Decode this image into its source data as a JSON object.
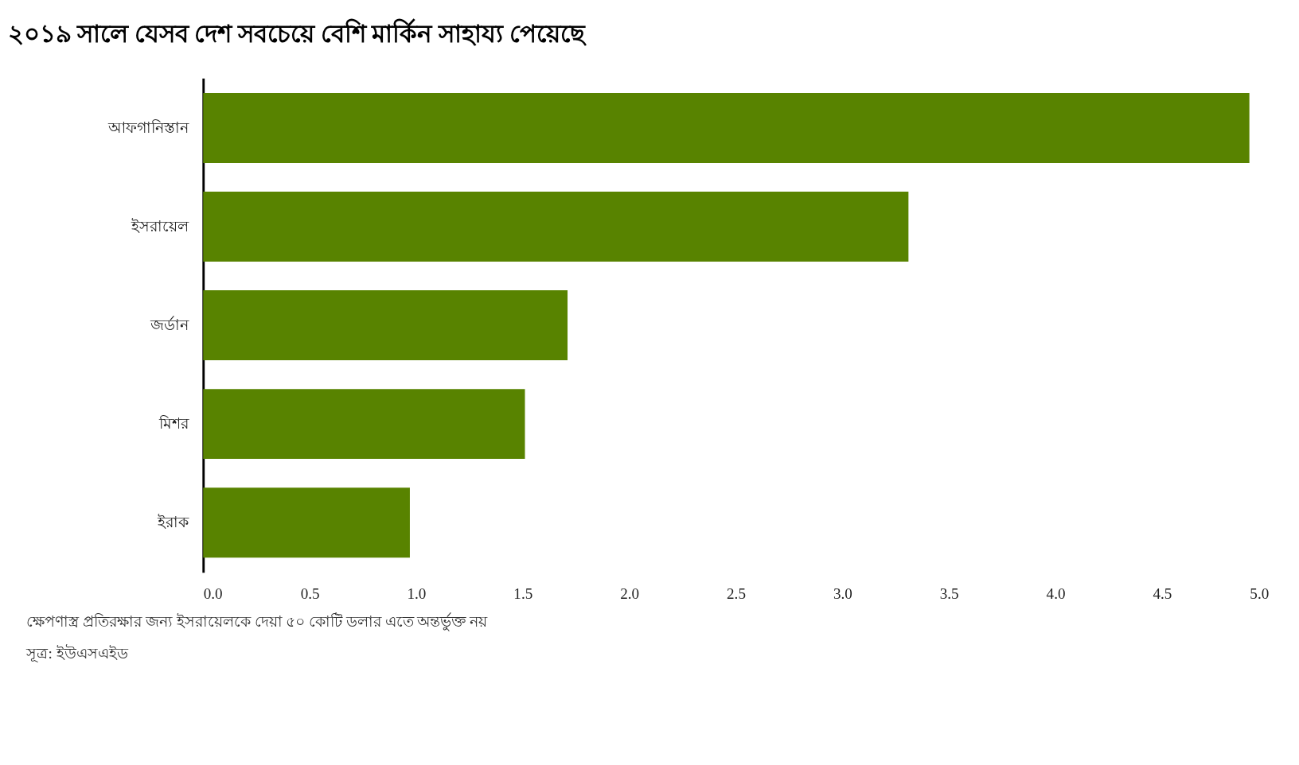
{
  "chart_data": {
    "type": "bar",
    "orientation": "horizontal",
    "title": "২০১৯ সালে যেসব দেশ সবচেয়ে বেশি মার্কিন সাহায্য পেয়েছে",
    "categories": [
      "আফগানিস্তান",
      "ইসরায়েল",
      "জর্ডান",
      "মিশর",
      "ইরাক"
    ],
    "values": [
      4.91,
      3.31,
      1.71,
      1.51,
      0.97
    ],
    "color": "#588300",
    "xlim": [
      0,
      5
    ],
    "xticks": [
      {
        "value": 0,
        "label": "0.0"
      },
      {
        "value": 0.5,
        "label": "0.5"
      },
      {
        "value": 1,
        "label": "1.0"
      },
      {
        "value": 1.5,
        "label": "1.5"
      },
      {
        "value": 2,
        "label": "2.0"
      },
      {
        "value": 2.5,
        "label": "2.5"
      },
      {
        "value": 3,
        "label": "3.0"
      },
      {
        "value": 3.5,
        "label": "3.5"
      },
      {
        "value": 4,
        "label": "4.0"
      },
      {
        "value": 4.5,
        "label": "4.5"
      },
      {
        "value": 5,
        "label": "5.0"
      }
    ],
    "grid": false,
    "annotations": [
      "ক্ষেপণাস্ত্র প্রতিরক্ষার জন্য ইসরায়েলকে দেয়া ৫০ কোটি ডলার এতে অন্তর্ভুক্ত নয়",
      "সূত্র: ইউএসএইড"
    ]
  }
}
